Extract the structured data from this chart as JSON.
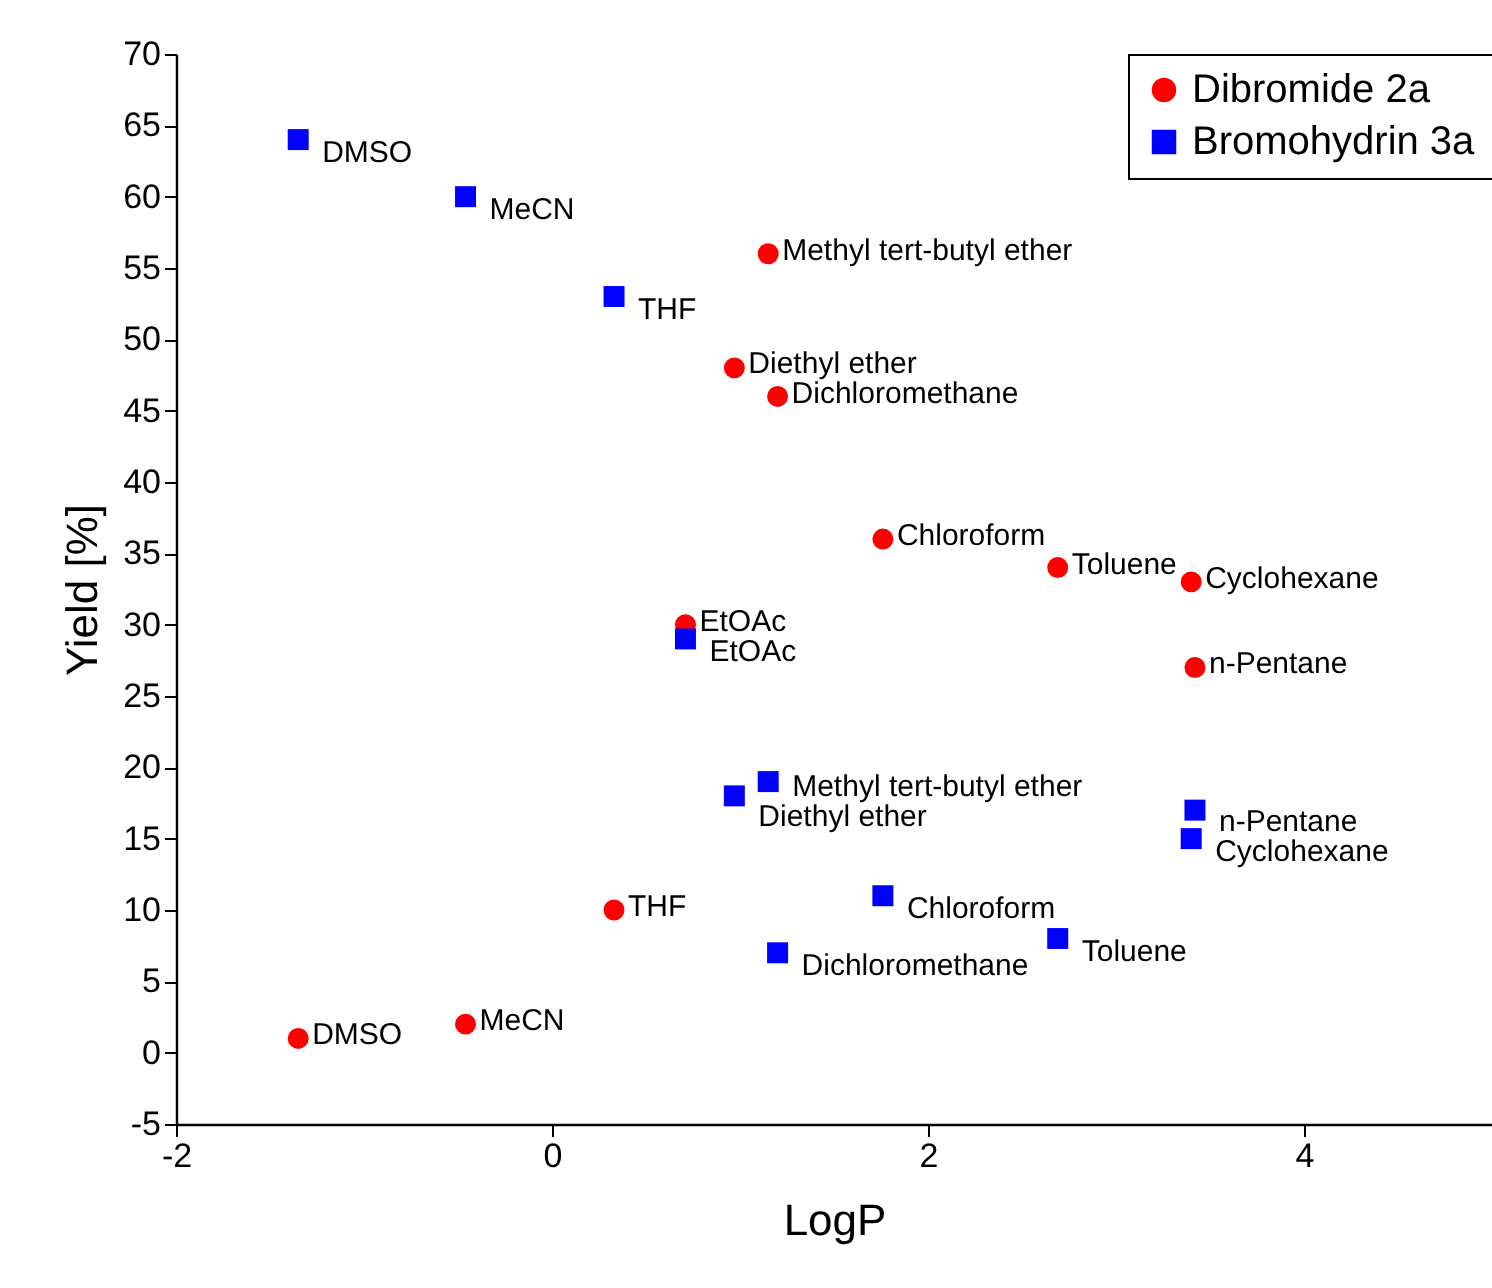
{
  "chart_data": {
    "type": "scatter",
    "xlabel": "LogP",
    "ylabel": "Yield [%]",
    "xlim": [
      -2,
      5
    ],
    "xticks": [
      -2,
      0,
      2,
      4
    ],
    "ylim": [
      -5,
      70
    ],
    "yticks": [
      -5,
      0,
      5,
      10,
      15,
      20,
      25,
      30,
      35,
      40,
      45,
      50,
      55,
      60,
      65,
      70
    ],
    "grid": false,
    "legend": "top right",
    "series": [
      {
        "name": "Dibromide 2a",
        "color": "#ff0000",
        "marker": "circle",
        "x": [
          -1.35,
          -0.46,
          0.33,
          0.71,
          0.97,
          1.2,
          1.15,
          1.76,
          2.69,
          3.4,
          3.42
        ],
        "values": [
          1,
          2,
          10,
          30,
          48,
          46,
          56,
          36,
          34,
          33,
          27
        ]
      },
      {
        "name": "Bromohydrin 3a",
        "color": "#0000ff",
        "marker": "square",
        "x": [
          -1.35,
          -0.46,
          0.33,
          0.71,
          0.97,
          1.15,
          1.2,
          1.76,
          2.69,
          3.4,
          3.42
        ],
        "values": [
          64,
          60,
          53,
          29,
          18,
          19,
          7,
          11,
          8,
          15,
          17
        ]
      }
    ],
    "annotations": [
      {
        "text": "DMSO",
        "x": -1.35,
        "y": 1
      },
      {
        "text": "MeCN",
        "x": -0.46,
        "y": 2
      },
      {
        "text": "THF",
        "x": 0.33,
        "y": 10
      },
      {
        "text": "EtOAc",
        "x": 0.71,
        "y": 30
      },
      {
        "text": "Diethyl ether",
        "x": 0.97,
        "y": 48
      },
      {
        "text": "Dichloromethane",
        "x": 1.2,
        "y": 46
      },
      {
        "text": "Methyl tert-butyl ether",
        "x": 1.15,
        "y": 56
      },
      {
        "text": "Chloroform",
        "x": 1.76,
        "y": 36
      },
      {
        "text": "Toluene",
        "x": 2.69,
        "y": 34
      },
      {
        "text": "Cyclohexane",
        "x": 3.4,
        "y": 33
      },
      {
        "text": "n-Pentane",
        "x": 3.42,
        "y": 27
      },
      {
        "text": "DMSO",
        "x": -1.35,
        "y": 64
      },
      {
        "text": "MeCN",
        "x": -0.46,
        "y": 60
      },
      {
        "text": "THF",
        "x": 0.33,
        "y": 53
      },
      {
        "text": "EtOAc",
        "x": 0.71,
        "y": 29
      },
      {
        "text": "Diethyl ether",
        "x": 0.97,
        "y": 18
      },
      {
        "text": "Methyl tert-butyl ether",
        "x": 1.15,
        "y": 19
      },
      {
        "text": "Dichloromethane",
        "x": 1.2,
        "y": 7
      },
      {
        "text": "Chloroform",
        "x": 1.76,
        "y": 11
      },
      {
        "text": "Toluene",
        "x": 2.69,
        "y": 8
      },
      {
        "text": "Cyclohexane",
        "x": 3.4,
        "y": 15
      },
      {
        "text": "n-Pentane",
        "x": 3.42,
        "y": 17
      }
    ]
  }
}
